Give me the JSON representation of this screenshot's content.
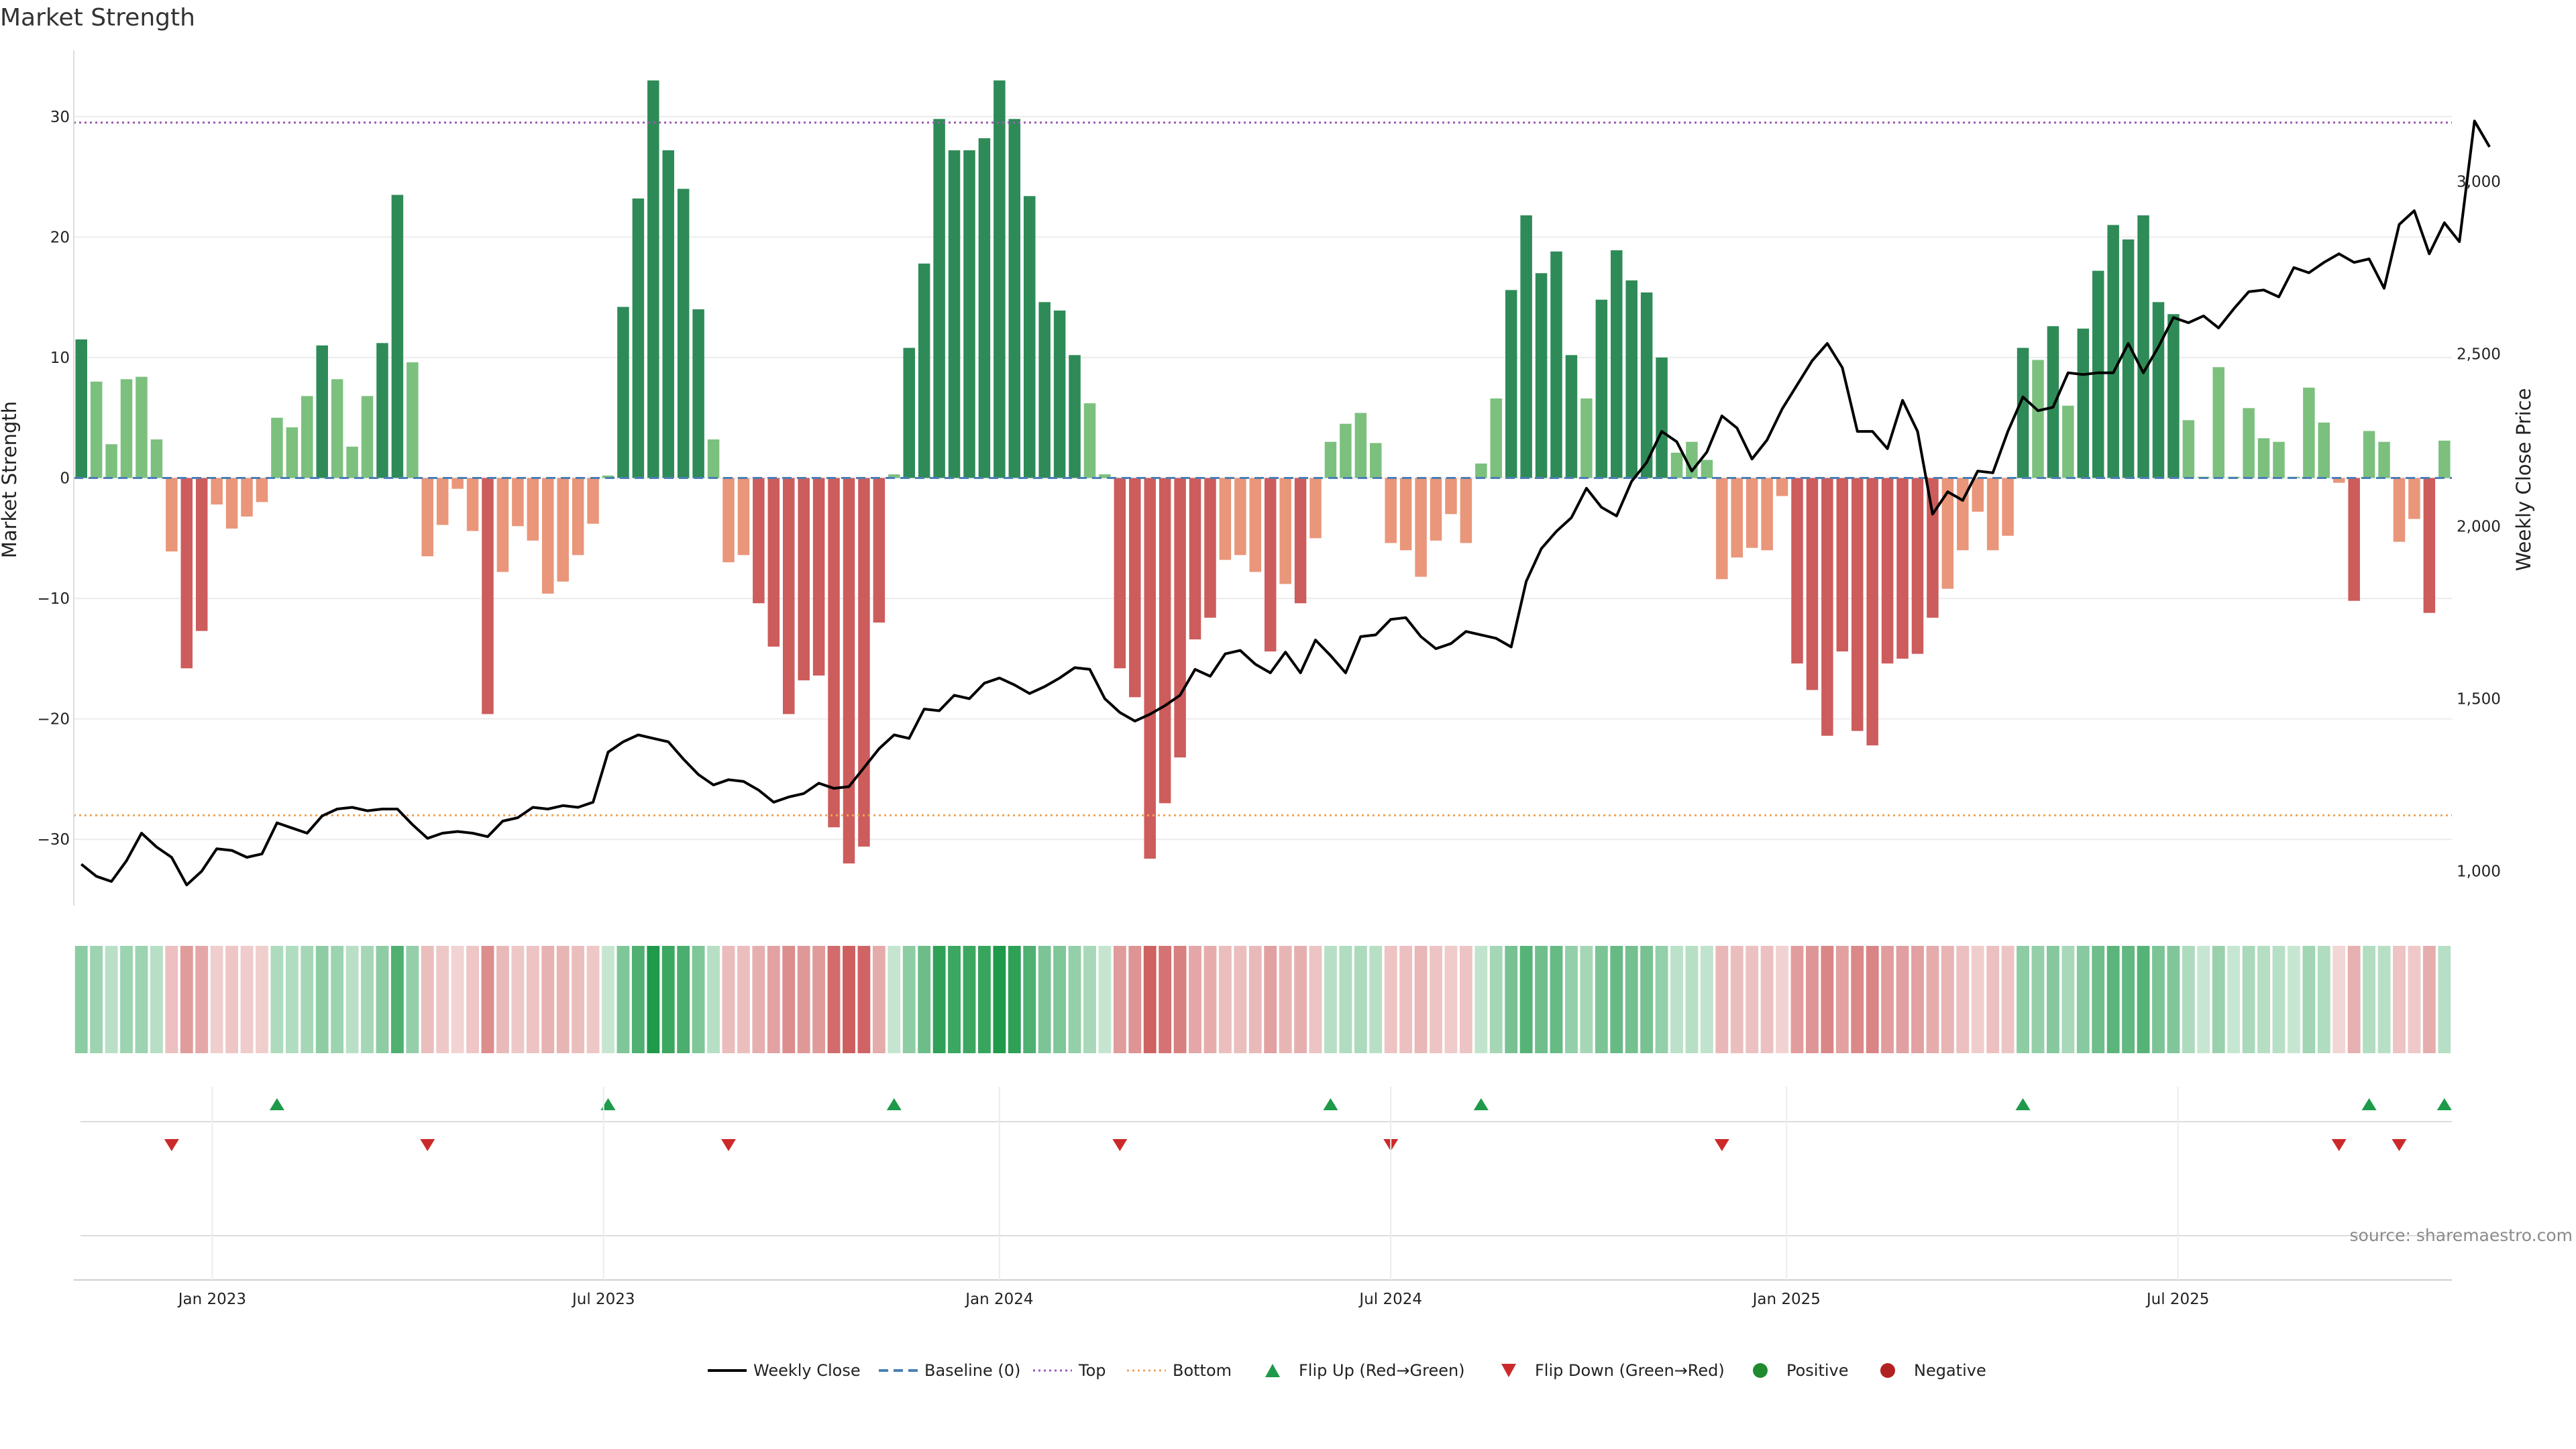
{
  "chart_data": {
    "type": "bar",
    "title": "Market Strength",
    "ylabel_left": "Market Strength",
    "ylabel_right": "Weekly Close Price",
    "source": "source: sharemaestro.com",
    "ylim_left": [
      -35.5,
      35.5
    ],
    "ylim_right": [
      900,
      3380
    ],
    "yticks_left": [
      "30",
      "20",
      "10",
      "0",
      "−10",
      "−20",
      "−30"
    ],
    "yticks_left_values": [
      30,
      20,
      10,
      0,
      -10,
      -20,
      -30
    ],
    "yticks_right": [
      "3,000",
      "2,500",
      "2,000",
      "1,500",
      "1,000"
    ],
    "yticks_right_values": [
      3000,
      2500,
      2000,
      1500,
      1000
    ],
    "xticks": [
      {
        "label": "Jan 2023",
        "index": 9.2
      },
      {
        "label": "Jul 2023",
        "index": 35.2
      },
      {
        "label": "Jan 2024",
        "index": 61.5
      },
      {
        "label": "Jul 2024",
        "index": 87.5
      },
      {
        "label": "Jan 2025",
        "index": 113.8
      },
      {
        "label": "Jul 2025",
        "index": 139.8
      }
    ],
    "top_line": 29.5,
    "bottom_line": -28,
    "colors": {
      "strong_positive": "#2e8b57",
      "weak_positive": "#7cc07e",
      "strong_negative": "#cd5c5c",
      "weak_negative": "#e9967a",
      "price_line": "#000000",
      "top": "#9b59b6",
      "bottom": "#f0a35e",
      "baseline": "#4a7fb5",
      "flip_up": "#1e9a4a",
      "flip_down": "#cc2a2a"
    },
    "strength": [
      11.5,
      8,
      2.8,
      8.2,
      8.4,
      3.2,
      -6.1,
      -15.8,
      -12.7,
      -2.2,
      -4.2,
      -3.2,
      -2,
      5,
      4.2,
      6.8,
      11,
      8.2,
      2.6,
      6.8,
      11.2,
      23.5,
      9.6,
      -6.5,
      -3.9,
      -0.9,
      -4.4,
      -19.6,
      -7.8,
      -4,
      -5.2,
      -9.6,
      -8.6,
      -6.4,
      -3.8,
      0.2,
      14.2,
      23.2,
      33,
      27.2,
      24,
      14,
      3.2,
      -7,
      -6.4,
      -10.4,
      -14,
      -19.6,
      -16.8,
      -16.4,
      -29,
      -32,
      -30.6,
      -12,
      0.3,
      10.8,
      17.8,
      29.8,
      27.2,
      27.2,
      28.2,
      33,
      29.8,
      23.4,
      14.6,
      13.9,
      10.2,
      6.2,
      0.3,
      -15.8,
      -18.2,
      -31.6,
      -27,
      -23.2,
      -13.4,
      -11.6,
      -6.8,
      -6.4,
      -7.8,
      -14.4,
      -8.8,
      -10.4,
      -5,
      3,
      4.5,
      5.4,
      2.9,
      -5.4,
      -6,
      -8.2,
      -5.2,
      -3,
      -5.4,
      1.2,
      6.6,
      15.6,
      21.8,
      17,
      18.8,
      10.2,
      6.6,
      14.8,
      18.9,
      16.4,
      15.4,
      10,
      2.1,
      3,
      1.5,
      -8.4,
      -6.6,
      -5.8,
      -6,
      -1.5,
      -15.4,
      -17.6,
      -21.4,
      -14.4,
      -21,
      -22.2,
      -15.4,
      -15,
      -14.6,
      -11.6,
      -9.2,
      -6,
      -2.8,
      -6,
      -4.8,
      10.8,
      9.8,
      12.6,
      6,
      12.4,
      17.2,
      21,
      19.8,
      21.8,
      14.6,
      13.6,
      4.8,
      0.1,
      9.2,
      0.1,
      5.8,
      3.3,
      3,
      0.1,
      7.5,
      4.6,
      -0.4,
      -10.2,
      3.9,
      3,
      -5.3,
      -3.4,
      -11.2,
      3.1
    ],
    "weekly_close": [
      1020,
      985,
      970,
      1030,
      1110,
      1070,
      1040,
      960,
      1000,
      1065,
      1060,
      1040,
      1050,
      1140,
      1125,
      1110,
      1160,
      1180,
      1185,
      1175,
      1180,
      1180,
      1135,
      1095,
      1110,
      1115,
      1110,
      1100,
      1145,
      1155,
      1185,
      1180,
      1190,
      1185,
      1200,
      1345,
      1375,
      1395,
      1385,
      1375,
      1325,
      1280,
      1250,
      1265,
      1260,
      1235,
      1200,
      1215,
      1225,
      1255,
      1240,
      1245,
      1300,
      1355,
      1395,
      1385,
      1470,
      1465,
      1510,
      1500,
      1545,
      1560,
      1540,
      1515,
      1535,
      1560,
      1590,
      1585,
      1500,
      1460,
      1435,
      1455,
      1480,
      1510,
      1585,
      1565,
      1630,
      1640,
      1600,
      1575,
      1635,
      1575,
      1670,
      1625,
      1575,
      1680,
      1685,
      1730,
      1735,
      1680,
      1645,
      1660,
      1695,
      1685,
      1675,
      1650,
      1840,
      1935,
      1985,
      2025,
      2110,
      2055,
      2030,
      2130,
      2185,
      2275,
      2245,
      2160,
      2215,
      2320,
      2285,
      2195,
      2250,
      2340,
      2410,
      2480,
      2530,
      2460,
      2275,
      2275,
      2225,
      2365,
      2275,
      2035,
      2100,
      2075,
      2160,
      2155,
      2275,
      2375,
      2335,
      2345,
      2445,
      2440,
      2445,
      2445,
      2530,
      2445,
      2520,
      2605,
      2590,
      2610,
      2575,
      2630,
      2680,
      2685,
      2665,
      2750,
      2735,
      2765,
      2790,
      2765,
      2775,
      2690,
      2875,
      2915,
      2790,
      2880,
      2825,
      3175,
      3100
    ]
  },
  "legend": [
    {
      "label": "Weekly Close",
      "icon": "solid-line-icon"
    },
    {
      "label": "Baseline (0)",
      "icon": "dashed-line-icon"
    },
    {
      "label": "Top",
      "icon": "dotted-line-icon"
    },
    {
      "label": "Bottom",
      "icon": "dotted-line-icon"
    },
    {
      "label": "Flip Up (Red→Green)",
      "icon": "triangle-up-icon"
    },
    {
      "label": "Flip Down (Green→Red)",
      "icon": "triangle-down-icon"
    },
    {
      "label": "Positive",
      "icon": "circle-icon"
    },
    {
      "label": "Negative",
      "icon": "circle-icon"
    }
  ]
}
